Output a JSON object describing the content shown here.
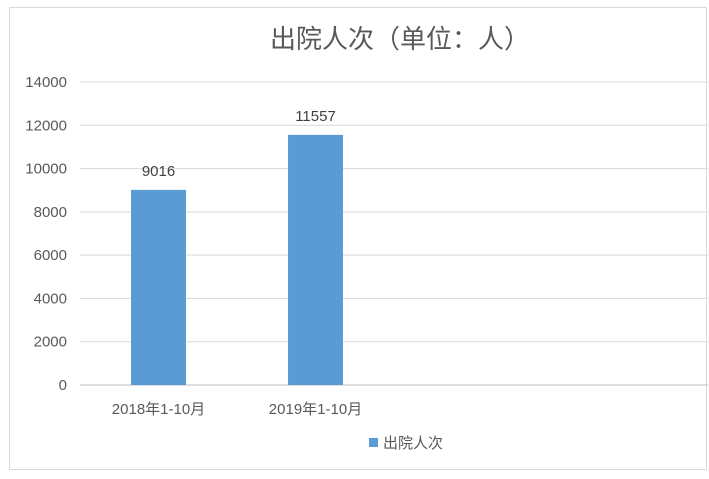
{
  "chart_data": {
    "type": "bar",
    "title": "出院人次（单位：人）",
    "categories": [
      "2018年1-10月",
      "2019年1-10月",
      "",
      ""
    ],
    "series": [
      {
        "name": "出院人次",
        "values": [
          9016,
          11557,
          null,
          null
        ],
        "color": "#5b9bd5"
      }
    ],
    "ylim": [
      0,
      14000
    ],
    "yticks": [
      0,
      2000,
      4000,
      6000,
      8000,
      10000,
      12000,
      14000
    ],
    "grid": true,
    "legend": "bottom",
    "data_labels": true
  }
}
